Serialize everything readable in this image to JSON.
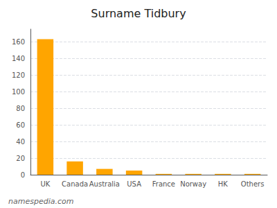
{
  "chart_data": {
    "type": "bar",
    "title": "Surname Tidbury",
    "categories": [
      "UK",
      "Canada",
      "Australia",
      "USA",
      "France",
      "Norway",
      "HK",
      "Others"
    ],
    "values": [
      163,
      16,
      7,
      5,
      1,
      1,
      1,
      1
    ],
    "color": "#FFA500",
    "ylim": [
      0,
      175
    ],
    "yticks": [
      0,
      20,
      40,
      60,
      80,
      100,
      120,
      140,
      160
    ],
    "grid": true,
    "annotations": [
      "namespedia.com"
    ]
  }
}
